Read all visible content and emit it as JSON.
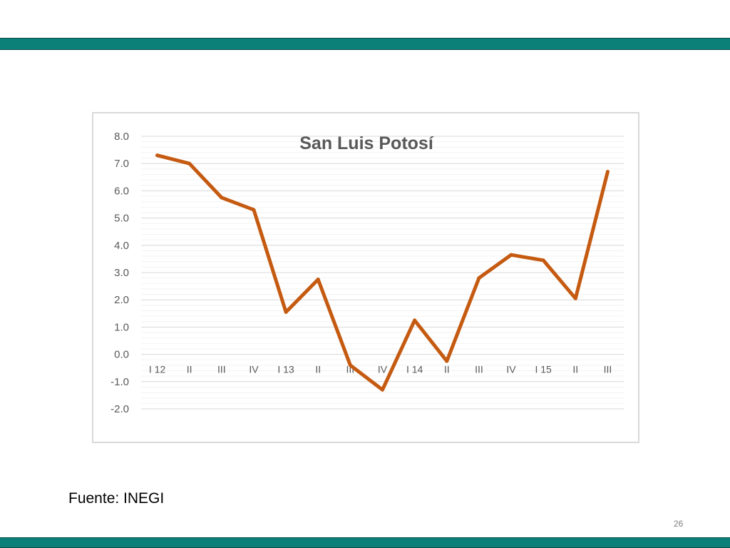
{
  "slide": {
    "source": "Fuente: INEGI",
    "page_number": "26",
    "accent_color": "#0b8079"
  },
  "chart_data": {
    "type": "line",
    "title": "San Luis Potosí",
    "xlabel": "",
    "ylabel": "",
    "ylim": [
      -2.0,
      8.0
    ],
    "yticks": [
      "-2.0",
      "-1.0",
      "0.0",
      "1.0",
      "2.0",
      "3.0",
      "4.0",
      "5.0",
      "6.0",
      "7.0",
      "8.0"
    ],
    "grid": true,
    "categories": [
      "I 12",
      "II",
      "III",
      "IV",
      "I 13",
      "II",
      "III",
      "IV",
      "I 14",
      "II",
      "III",
      "IV",
      "I 15",
      "II",
      "III"
    ],
    "series": [
      {
        "values": [
          7.3,
          7.0,
          5.75,
          5.3,
          1.55,
          2.75,
          -0.4,
          -1.3,
          1.25,
          -0.25,
          2.8,
          3.65,
          3.45,
          2.05,
          6.7
        ],
        "color": "#c55a11"
      }
    ]
  }
}
